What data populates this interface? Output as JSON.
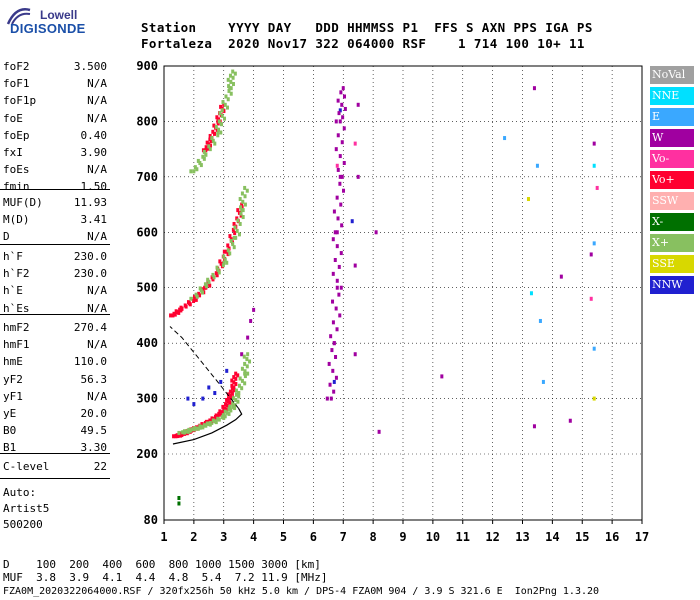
{
  "logo": {
    "line1": "Lowell",
    "line2": "DIGISONDE"
  },
  "header": {
    "line1": "Station    YYYY DAY   DDD HHMMSS P1  FFS S AXN PPS IGA PS",
    "line2": "Fortaleza  2020 Nov17 322 064000 RSF    1 714 100 10+ 11"
  },
  "params_group1": [
    {
      "label": "foF2",
      "value": "3.500"
    },
    {
      "label": "foF1",
      "value": "N/A"
    },
    {
      "label": "foF1p",
      "value": "N/A"
    },
    {
      "label": "foE",
      "value": "N/A"
    },
    {
      "label": "foEp",
      "value": "0.40"
    },
    {
      "label": "fxI",
      "value": "3.90"
    },
    {
      "label": "foEs",
      "value": "N/A"
    },
    {
      "label": "fmin",
      "value": "1.50"
    }
  ],
  "params_group2": [
    {
      "label": "MUF(D)",
      "value": "11.93"
    },
    {
      "label": "M(D)",
      "value": "3.41"
    },
    {
      "label": "D",
      "value": "N/A"
    }
  ],
  "params_group3": [
    {
      "label": "h`F",
      "value": "230.0"
    },
    {
      "label": "h`F2",
      "value": "230.0"
    },
    {
      "label": "h`E",
      "value": "N/A"
    },
    {
      "label": "h`Es",
      "value": "N/A"
    }
  ],
  "params_group4": [
    {
      "label": "hmF2",
      "value": "270.4"
    },
    {
      "label": "hmF1",
      "value": "N/A"
    },
    {
      "label": "hmE",
      "value": "110.0"
    },
    {
      "label": "yF2",
      "value": "56.3"
    },
    {
      "label": "yF1",
      "value": "N/A"
    },
    {
      "label": "yE",
      "value": "20.0"
    },
    {
      "label": "B0",
      "value": "49.5"
    },
    {
      "label": "B1",
      "value": "3.30"
    }
  ],
  "params_group5": [
    {
      "label": "C-level",
      "value": "22"
    }
  ],
  "autoscaler": {
    "line1": "Auto:",
    "line2": "Artist5",
    "line3": "500200"
  },
  "footer": {
    "d_line": "D    100  200  400  600  800 1000 1500 3000 [km]",
    "muf_line": "MUF  3.8  3.9  4.1  4.4  4.8  5.4  7.2 11.9 [MHz]",
    "file_line": "FZA0M_2020322064000.RSF / 320fx256h 50 kHz 5.0 km / DPS-4 FZA0M 904 / 3.9 S 321.6 E  Ion2Png 1.3.20"
  },
  "legend": [
    {
      "label": "NoVal",
      "color": "#a0a0a0"
    },
    {
      "label": "NNE",
      "color": "#00e0ff"
    },
    {
      "label": "E",
      "color": "#3aa8ff"
    },
    {
      "label": "W",
      "color": "#a000a0"
    },
    {
      "label": "Vo-",
      "color": "#ff30a0"
    },
    {
      "label": "Vo+",
      "color": "#ff0030"
    },
    {
      "label": "SSW",
      "color": "#ffb0b0"
    },
    {
      "label": "X-",
      "color": "#007000"
    },
    {
      "label": "X+",
      "color": "#88c060"
    },
    {
      "label": "SSE",
      "color": "#d8d800"
    },
    {
      "label": "NNW",
      "color": "#2020d0"
    }
  ],
  "chart_data": {
    "type": "scatter",
    "title": "",
    "xlabel": "",
    "ylabel": "",
    "xlim": [
      1,
      17
    ],
    "ylim": [
      80,
      900
    ],
    "x_ticks": [
      1,
      2,
      3,
      4,
      5,
      6,
      7,
      8,
      9,
      10,
      11,
      12,
      13,
      14,
      15,
      16,
      17
    ],
    "y_ticks": [
      80,
      200,
      300,
      400,
      500,
      600,
      700,
      800,
      900
    ],
    "grid": true,
    "series": [
      {
        "name": "Vo+",
        "color": "#ff0030",
        "points": [
          [
            1.4,
            232
          ],
          [
            1.6,
            235
          ],
          [
            1.8,
            240
          ],
          [
            2.0,
            245
          ],
          [
            2.2,
            250
          ],
          [
            2.5,
            258
          ],
          [
            2.8,
            268
          ],
          [
            3.0,
            280
          ],
          [
            3.2,
            300
          ],
          [
            3.3,
            320
          ],
          [
            3.4,
            345
          ],
          [
            1.3,
            450
          ],
          [
            1.6,
            462
          ],
          [
            2.0,
            478
          ],
          [
            2.4,
            500
          ],
          [
            2.8,
            530
          ],
          [
            3.1,
            565
          ],
          [
            3.4,
            610
          ],
          [
            3.6,
            650
          ],
          [
            2.4,
            748
          ],
          [
            2.6,
            770
          ],
          [
            2.8,
            800
          ],
          [
            3.0,
            830
          ]
        ]
      },
      {
        "name": "X+",
        "color": "#88c060",
        "points": [
          [
            1.6,
            238
          ],
          [
            1.9,
            243
          ],
          [
            2.2,
            248
          ],
          [
            2.6,
            256
          ],
          [
            3.0,
            268
          ],
          [
            3.3,
            285
          ],
          [
            3.5,
            310
          ],
          [
            3.7,
            345
          ],
          [
            3.8,
            380
          ],
          [
            2.0,
            480
          ],
          [
            2.5,
            510
          ],
          [
            3.0,
            545
          ],
          [
            3.4,
            590
          ],
          [
            3.6,
            640
          ],
          [
            3.7,
            680
          ],
          [
            2.0,
            710
          ],
          [
            2.4,
            740
          ],
          [
            2.8,
            780
          ],
          [
            3.0,
            820
          ],
          [
            3.2,
            860
          ],
          [
            3.3,
            890
          ]
        ]
      },
      {
        "name": "W",
        "color": "#a000a0",
        "points": [
          [
            3.6,
            380
          ],
          [
            3.8,
            410
          ],
          [
            3.9,
            440
          ],
          [
            4.0,
            460
          ],
          [
            6.6,
            300
          ],
          [
            6.7,
            400
          ],
          [
            6.8,
            500
          ],
          [
            6.8,
            600
          ],
          [
            6.9,
            700
          ],
          [
            6.9,
            800
          ],
          [
            7.0,
            860
          ],
          [
            7.4,
            380
          ],
          [
            7.4,
            540
          ],
          [
            7.5,
            700
          ],
          [
            7.5,
            830
          ],
          [
            8.1,
            600
          ],
          [
            8.2,
            240
          ],
          [
            10.3,
            340
          ],
          [
            13.4,
            250
          ],
          [
            13.4,
            860
          ],
          [
            14.3,
            520
          ],
          [
            14.6,
            260
          ],
          [
            15.3,
            560
          ],
          [
            15.4,
            760
          ]
        ]
      },
      {
        "name": "NNW",
        "color": "#2020d0",
        "points": [
          [
            1.8,
            300
          ],
          [
            2.0,
            290
          ],
          [
            2.3,
            300
          ],
          [
            2.5,
            320
          ],
          [
            2.7,
            310
          ],
          [
            2.9,
            330
          ],
          [
            3.1,
            350
          ],
          [
            6.7,
            330
          ],
          [
            6.9,
            820
          ],
          [
            7.3,
            620
          ]
        ]
      },
      {
        "name": "E",
        "color": "#3aa8ff",
        "points": [
          [
            12.4,
            770
          ],
          [
            13.5,
            720
          ],
          [
            13.6,
            440
          ],
          [
            13.7,
            330
          ],
          [
            15.4,
            390
          ],
          [
            15.4,
            580
          ]
        ]
      },
      {
        "name": "Vo-",
        "color": "#ff30a0",
        "points": [
          [
            6.8,
            720
          ],
          [
            7.4,
            760
          ],
          [
            15.3,
            480
          ],
          [
            15.5,
            680
          ]
        ]
      },
      {
        "name": "SSE",
        "color": "#d8d800",
        "points": [
          [
            13.2,
            660
          ],
          [
            15.4,
            300
          ]
        ]
      },
      {
        "name": "X-",
        "color": "#007000",
        "points": [
          [
            1.5,
            120
          ],
          [
            1.5,
            110
          ]
        ]
      },
      {
        "name": "NNE",
        "color": "#00e0ff",
        "points": [
          [
            15.4,
            720
          ],
          [
            13.3,
            490
          ]
        ]
      }
    ]
  }
}
